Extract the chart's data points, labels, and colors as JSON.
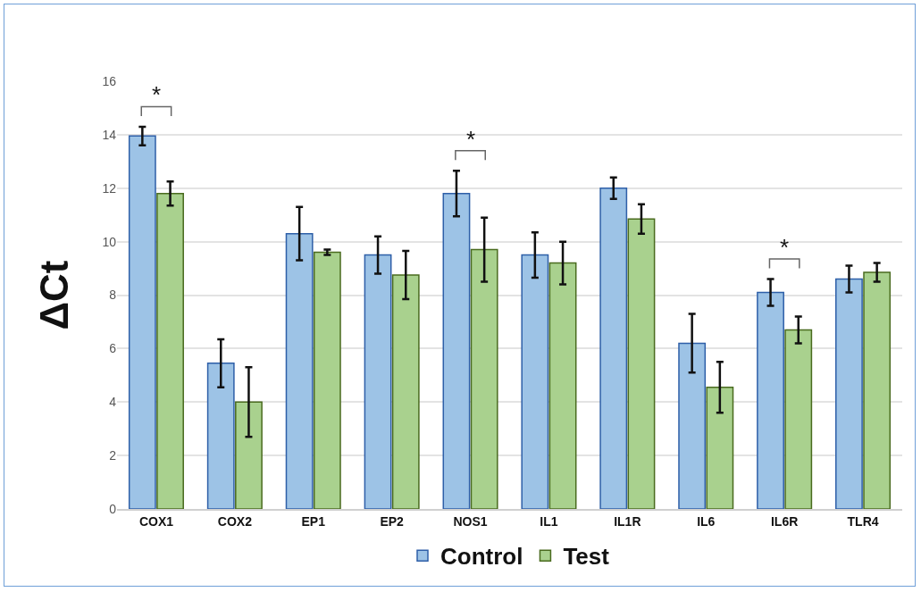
{
  "chart_data": {
    "type": "bar",
    "ylabel": "ΔCt",
    "categories": [
      "COX1",
      "COX2",
      "EP1",
      "EP2",
      "NOS1",
      "IL1",
      "IL1R",
      "IL6",
      "IL6R",
      "TLR4"
    ],
    "series": [
      {
        "name": "Control",
        "color": "#9dc3e6",
        "values": [
          13.95,
          5.45,
          10.3,
          9.5,
          11.8,
          9.5,
          12.0,
          6.2,
          8.1,
          8.6
        ],
        "errors": [
          0.35,
          0.9,
          1.0,
          0.7,
          0.85,
          0.85,
          0.4,
          1.1,
          0.5,
          0.5
        ]
      },
      {
        "name": "Test",
        "color": "#a9d18e",
        "values": [
          11.8,
          4.0,
          9.6,
          8.75,
          9.7,
          9.2,
          10.85,
          4.55,
          6.7,
          8.85
        ],
        "errors": [
          0.45,
          1.3,
          0.1,
          0.9,
          1.2,
          0.8,
          0.55,
          0.95,
          0.5,
          0.35
        ]
      }
    ],
    "ylim": [
      0,
      16
    ],
    "yticks": [
      0,
      2,
      4,
      6,
      8,
      10,
      12,
      14,
      16
    ],
    "grid": "y",
    "legend": "bottom",
    "annotations": [
      "*",
      "*",
      "*"
    ]
  }
}
